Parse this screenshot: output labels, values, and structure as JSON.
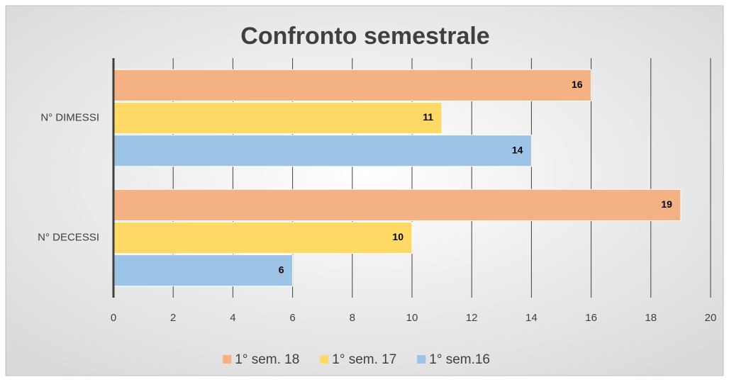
{
  "chart_data": {
    "type": "bar",
    "orientation": "horizontal",
    "title": "Confronto semestrale",
    "categories": [
      "N° DIMESSI",
      "N° DECESSI"
    ],
    "series": [
      {
        "name": "1° sem. 18",
        "color": "#F4B183",
        "values": [
          16,
          19
        ]
      },
      {
        "name": "1° sem. 17",
        "color": "#FFD966",
        "values": [
          11,
          10
        ]
      },
      {
        "name": "1° sem.16",
        "color": "#9DC3E6",
        "values": [
          14,
          6
        ]
      }
    ],
    "xlim": [
      0,
      20
    ],
    "xticks": [
      0,
      2,
      4,
      6,
      8,
      10,
      12,
      14,
      16,
      18,
      20
    ],
    "grid": true,
    "legend": "bottom"
  }
}
